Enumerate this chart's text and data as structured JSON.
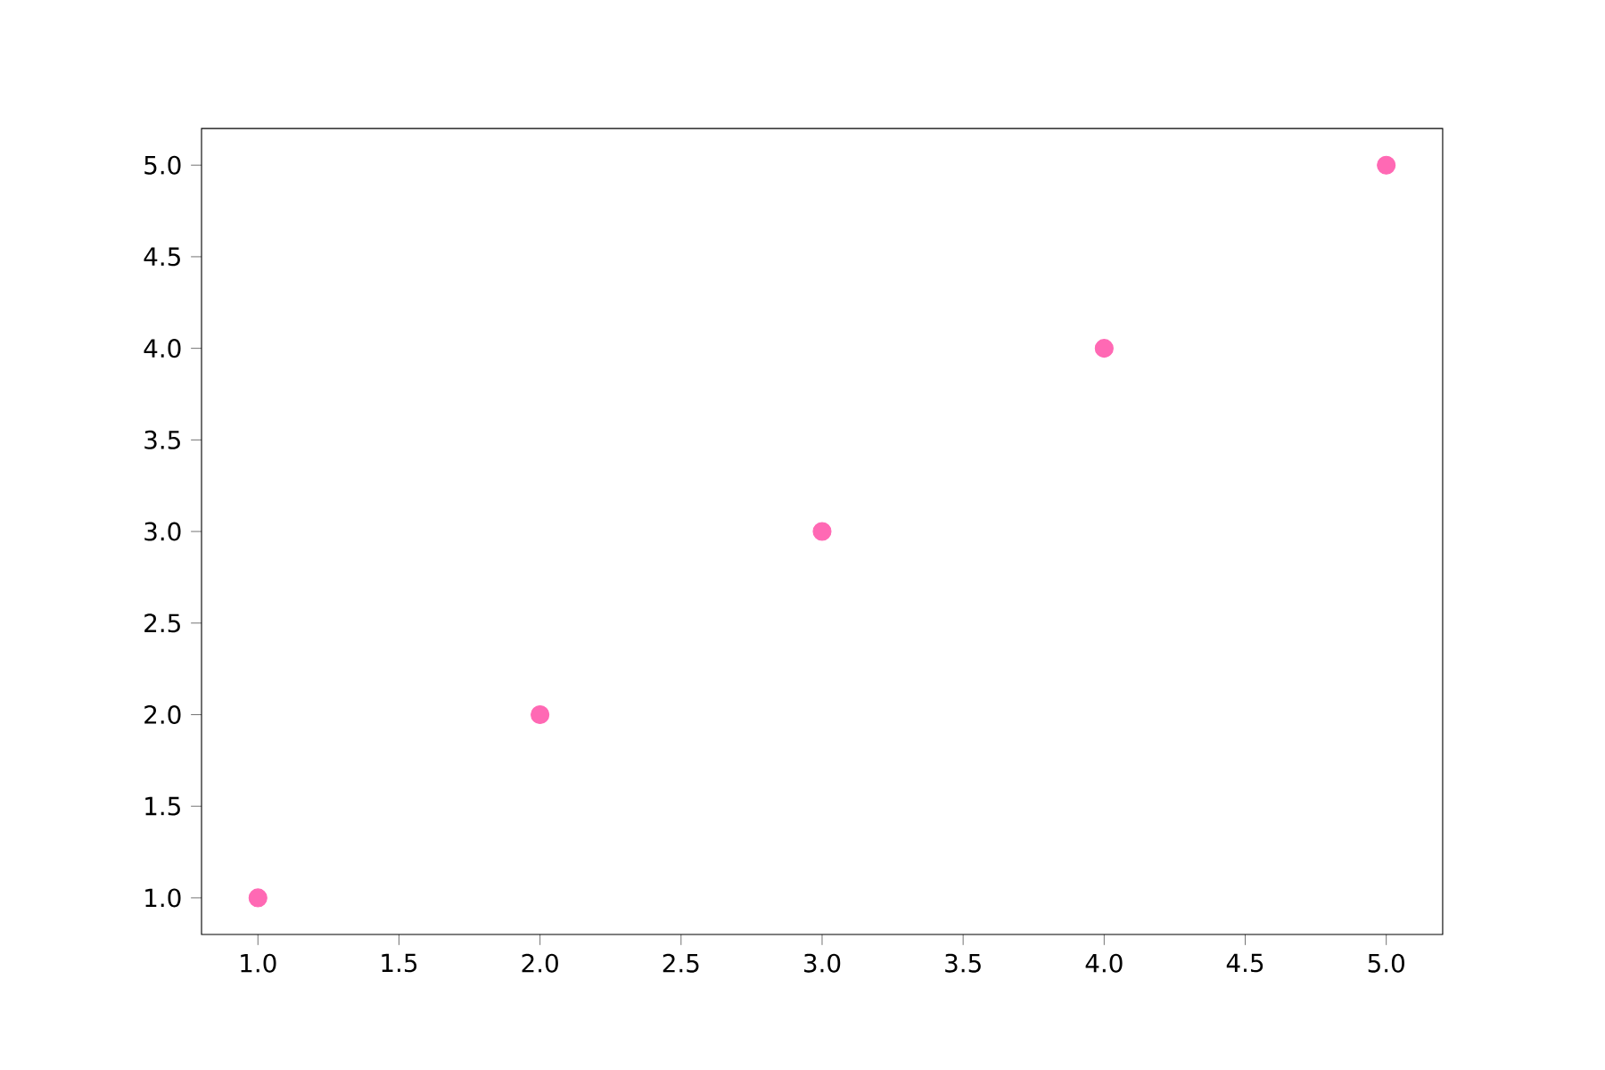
{
  "chart_data": {
    "type": "scatter",
    "x": [
      1,
      2,
      3,
      4,
      5
    ],
    "values": [
      1,
      2,
      3,
      4,
      5
    ],
    "color": "#ff69b4",
    "marker": "circle",
    "xlim": [
      0.8,
      5.2
    ],
    "ylim": [
      0.8,
      5.2
    ],
    "xticks": [
      {
        "value": 1,
        "label": "1.0"
      },
      {
        "value": 1.5,
        "label": "1.5"
      },
      {
        "value": 2,
        "label": "2.0"
      },
      {
        "value": 2.5,
        "label": "2.5"
      },
      {
        "value": 3,
        "label": "3.0"
      },
      {
        "value": 3.5,
        "label": "3.5"
      },
      {
        "value": 4,
        "label": "4.0"
      },
      {
        "value": 4.5,
        "label": "4.5"
      },
      {
        "value": 5,
        "label": "5.0"
      }
    ],
    "yticks": [
      {
        "value": 1,
        "label": "1.0"
      },
      {
        "value": 1.5,
        "label": "1.5"
      },
      {
        "value": 2,
        "label": "2.0"
      },
      {
        "value": 2.5,
        "label": "2.5"
      },
      {
        "value": 3,
        "label": "3.0"
      },
      {
        "value": 3.5,
        "label": "3.5"
      },
      {
        "value": 4,
        "label": "4.0"
      },
      {
        "value": 4.5,
        "label": "4.5"
      },
      {
        "value": 5,
        "label": "5.0"
      }
    ]
  }
}
